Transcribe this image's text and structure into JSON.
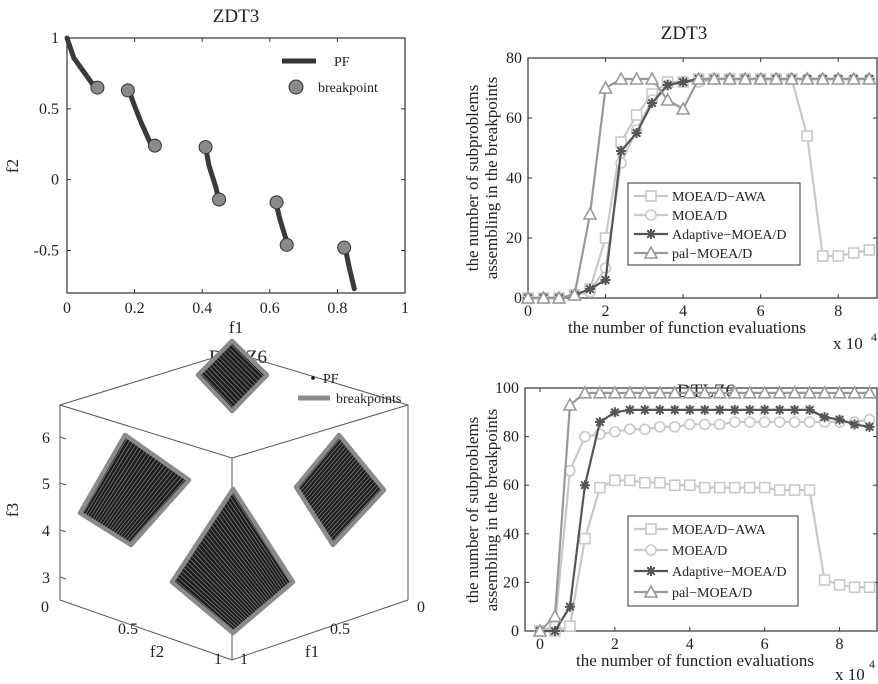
{
  "chart_data": [
    {
      "id": "zdt3_pf",
      "type": "line",
      "title": "ZDT3",
      "xlabel": "f1",
      "ylabel": "f2",
      "xlim": [
        0,
        1
      ],
      "ylim": [
        -0.8,
        1
      ],
      "xticks": [
        "0",
        "0.2",
        "0.4",
        "0.6",
        "0.8",
        "1"
      ],
      "yticks": [
        "-0.5",
        "0",
        "0.5",
        "1"
      ],
      "legend": [
        "PF",
        "breakpoint"
      ],
      "legend_position": "top-right",
      "series": [
        {
          "name": "PF",
          "segments": [
            [
              [
                0.0,
                1.0
              ],
              [
                0.02,
                0.86
              ],
              [
                0.05,
                0.76
              ],
              [
                0.083,
                0.65
              ]
            ],
            [
              [
                0.183,
                0.63
              ],
              [
                0.2,
                0.52
              ],
              [
                0.22,
                0.4
              ],
              [
                0.25,
                0.24
              ]
            ],
            [
              [
                0.41,
                0.23
              ],
              [
                0.42,
                0.1
              ],
              [
                0.44,
                -0.05
              ],
              [
                0.45,
                -0.15
              ]
            ],
            [
              [
                0.618,
                -0.16
              ],
              [
                0.63,
                -0.28
              ],
              [
                0.653,
                -0.46
              ]
            ],
            [
              [
                0.823,
                -0.48
              ],
              [
                0.835,
                -0.62
              ],
              [
                0.85,
                -0.77
              ]
            ]
          ]
        },
        {
          "name": "breakpoint",
          "points": [
            [
              0.09,
              0.65
            ],
            [
              0.18,
              0.63
            ],
            [
              0.26,
              0.24
            ],
            [
              0.41,
              0.23
            ],
            [
              0.45,
              -0.14
            ],
            [
              0.62,
              -0.16
            ],
            [
              0.65,
              -0.46
            ],
            [
              0.82,
              -0.48
            ]
          ]
        }
      ]
    },
    {
      "id": "zdt3_count",
      "type": "line",
      "title": "ZDT3",
      "xlabel": "the number of function evaluations",
      "ylabel": "the number of subproblems assembling in the breakpoints",
      "ylabel_lines": [
        "the number of subproblems",
        "assembling in the breakpoints"
      ],
      "x_multiplier": "x 10",
      "x_multiplier_exp": "4",
      "xlim": [
        0,
        9
      ],
      "ylim": [
        0,
        80
      ],
      "xticks": [
        "0",
        "2",
        "4",
        "6",
        "8"
      ],
      "yticks": [
        "0",
        "20",
        "40",
        "60",
        "80"
      ],
      "legend_position": "center",
      "series": [
        {
          "name": "MOEA/D−AWA",
          "marker": "square",
          "color": "#c8c8c8",
          "x": [
            0,
            0.4,
            0.8,
            1.2,
            1.6,
            2.0,
            2.4,
            2.8,
            3.2,
            3.6,
            4.0,
            4.4,
            4.8,
            5.2,
            5.6,
            6.0,
            6.4,
            6.8,
            7.2,
            7.6,
            8.0,
            8.4,
            8.8
          ],
          "y": [
            0,
            0,
            0,
            1,
            3,
            20,
            52,
            61,
            68,
            72,
            72,
            73,
            73,
            73,
            73,
            73,
            73,
            73,
            54,
            14,
            14,
            15,
            16
          ]
        },
        {
          "name": "MOEA/D",
          "marker": "circle",
          "color": "#c8c8c8",
          "x": [
            0,
            0.4,
            0.8,
            1.2,
            1.6,
            2.0,
            2.4,
            2.8,
            3.2,
            3.6,
            4.0,
            4.4,
            4.8,
            5.2,
            5.6,
            6.0,
            6.4,
            6.8,
            7.2,
            7.6,
            8.0,
            8.4,
            8.8
          ],
          "y": [
            0,
            0,
            0,
            1,
            2,
            10,
            45,
            56,
            66,
            71,
            72,
            72,
            73,
            73,
            73,
            73,
            73,
            73,
            73,
            73,
            73,
            73,
            73
          ]
        },
        {
          "name": "Adaptive−MOEA/D",
          "marker": "star",
          "color": "#555555",
          "x": [
            0,
            0.4,
            0.8,
            1.2,
            1.6,
            2.0,
            2.4,
            2.8,
            3.2,
            3.6,
            4.0,
            4.4,
            4.8,
            5.2,
            5.6,
            6.0,
            6.4,
            6.8,
            7.2,
            7.6,
            8.0,
            8.4,
            8.8
          ],
          "y": [
            0,
            0,
            0,
            1,
            3,
            6,
            49,
            55,
            65,
            71,
            72,
            73,
            73,
            73,
            73,
            73,
            73,
            73,
            73,
            73,
            73,
            73,
            73
          ]
        },
        {
          "name": "pal−MOEA/D",
          "marker": "triangle",
          "color": "#999999",
          "x": [
            0,
            0.4,
            0.8,
            1.2,
            1.6,
            2.0,
            2.4,
            2.8,
            3.2,
            3.6,
            4.0,
            4.4,
            4.8,
            5.2,
            5.6,
            6.0,
            6.4,
            6.8,
            7.2,
            7.6,
            8.0,
            8.4,
            8.8
          ],
          "y": [
            0,
            0,
            0,
            1,
            28,
            70,
            73,
            73,
            73,
            66,
            63,
            73,
            73,
            73,
            73,
            73,
            73,
            73,
            73,
            73,
            73,
            73,
            73
          ]
        }
      ]
    },
    {
      "id": "dtlz6_pf",
      "type": "scatter",
      "title": "DTLZ6",
      "xlabel": "f1",
      "ylabel": "f2",
      "zlabel": "f3",
      "zticks": [
        "3",
        "4",
        "5",
        "6"
      ],
      "f1_ticks": [
        "0.5",
        "1"
      ],
      "f1_end": "0",
      "f2_ticks": [
        "0",
        "0.5",
        "1"
      ],
      "legend": [
        "PF",
        "breakpoints"
      ],
      "legend_position": "top-right"
    },
    {
      "id": "dtlz6_count",
      "type": "line",
      "title": "DTLZ6",
      "xlabel": "the number of function evaluations",
      "ylabel": "the number of subproblems assembling in the breakpoints",
      "ylabel_lines": [
        "the number of subproblems",
        "assembling in the breakpoints"
      ],
      "x_multiplier": "x 10",
      "x_multiplier_exp": "4",
      "xlim": [
        -0.4,
        9
      ],
      "ylim": [
        0,
        100
      ],
      "xticks": [
        "0",
        "2",
        "4",
        "6",
        "8"
      ],
      "yticks": [
        "0",
        "20",
        "40",
        "60",
        "80",
        "100"
      ],
      "legend_position": "bottom-left",
      "series": [
        {
          "name": "MOEA/D−AWA",
          "marker": "square",
          "color": "#c8c8c8",
          "x": [
            0,
            0.4,
            0.8,
            1.2,
            1.6,
            2.0,
            2.4,
            2.8,
            3.2,
            3.6,
            4.0,
            4.4,
            4.8,
            5.2,
            5.6,
            6.0,
            6.4,
            6.8,
            7.2,
            7.6,
            8.0,
            8.4,
            8.8
          ],
          "y": [
            0,
            0,
            2,
            38,
            59,
            62,
            62,
            61,
            61,
            60,
            60,
            59,
            59,
            59,
            59,
            59,
            58,
            58,
            58,
            21,
            19,
            18,
            18
          ]
        },
        {
          "name": "MOEA/D",
          "marker": "circle",
          "color": "#c8c8c8",
          "x": [
            0,
            0.4,
            0.8,
            1.2,
            1.6,
            2.0,
            2.4,
            2.8,
            3.2,
            3.6,
            4.0,
            4.4,
            4.8,
            5.2,
            5.6,
            6.0,
            6.4,
            6.8,
            7.2,
            7.6,
            8.0,
            8.4,
            8.8
          ],
          "y": [
            0,
            2,
            66,
            80,
            81,
            82,
            83,
            83,
            84,
            84,
            85,
            85,
            85,
            86,
            86,
            86,
            86,
            86,
            86,
            86,
            86,
            86,
            87
          ]
        },
        {
          "name": "Adaptive−MOEA/D",
          "marker": "star",
          "color": "#555555",
          "x": [
            0,
            0.4,
            0.8,
            1.2,
            1.6,
            2.0,
            2.4,
            2.8,
            3.2,
            3.6,
            4.0,
            4.4,
            4.8,
            5.2,
            5.6,
            6.0,
            6.4,
            6.8,
            7.2,
            7.6,
            8.0,
            8.4,
            8.8
          ],
          "y": [
            0,
            0,
            10,
            60,
            86,
            90,
            91,
            91,
            91,
            91,
            91,
            91,
            91,
            91,
            91,
            91,
            91,
            91,
            91,
            88,
            87,
            85,
            84
          ]
        },
        {
          "name": "pal−MOEA/D",
          "marker": "triangle",
          "color": "#999999",
          "x": [
            0,
            0.4,
            0.8,
            1.2,
            1.6,
            2.0,
            2.4,
            2.8,
            3.2,
            3.6,
            4.0,
            4.4,
            4.8,
            5.2,
            5.6,
            6.0,
            6.4,
            6.8,
            7.2,
            7.6,
            8.0,
            8.4,
            8.8
          ],
          "y": [
            0,
            6,
            93,
            98,
            98,
            98,
            98,
            98,
            98,
            98,
            98,
            98,
            98,
            98,
            98,
            98,
            98,
            98,
            98,
            98,
            98,
            98,
            98
          ]
        }
      ]
    }
  ]
}
